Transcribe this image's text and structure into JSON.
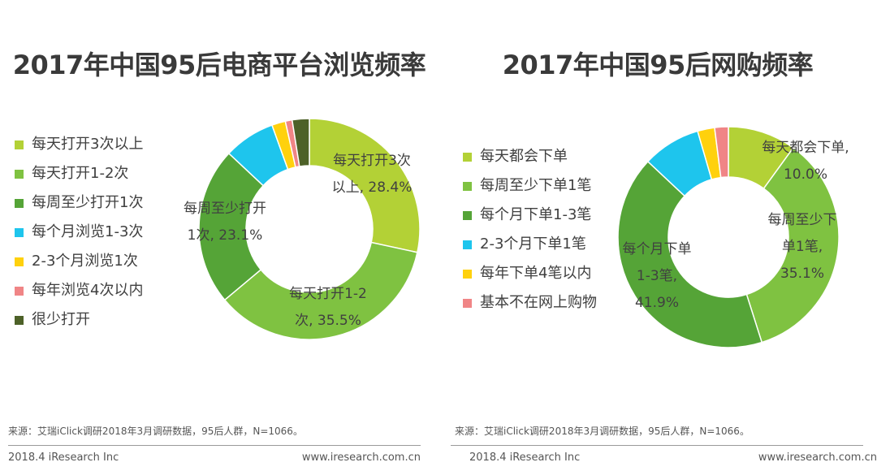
{
  "chart_data": [
    {
      "type": "pie",
      "title": "2017年中国95后电商平台浏览频率",
      "categories": [
        "每天打开3次以上",
        "每天打开1-2次",
        "每周至少打开1次",
        "每个月浏览1-3次",
        "2-3个月浏览1次",
        "每年浏览4次以内",
        "很少打开"
      ],
      "values": [
        28.4,
        35.5,
        23.1,
        7.5,
        2.0,
        1.0,
        2.5
      ],
      "colors": [
        "#b3d136",
        "#7fc241",
        "#55a437",
        "#1ec5ed",
        "#ffd10d",
        "#f08586",
        "#4d6128"
      ],
      "labels": [
        {
          "lines": [
            "每天打开3次",
            "以上, 28.4%"
          ]
        },
        {
          "lines": [
            "每天打开1-2",
            "次, 35.5%"
          ]
        },
        {
          "lines": [
            "每周至少打开",
            "1次, 23.1%"
          ]
        }
      ],
      "legend_position": "left"
    },
    {
      "type": "pie",
      "title": "2017年中国95后网购频率",
      "categories": [
        "每天都会下单",
        "每周至少下单1笔",
        "每个月下单1-3笔",
        "2-3个月下单1笔",
        "每年下单4笔以内",
        "基本不在网上购物"
      ],
      "values": [
        10.0,
        35.1,
        41.9,
        8.5,
        2.5,
        2.0
      ],
      "colors": [
        "#b3d136",
        "#7fc241",
        "#55a437",
        "#1ec5ed",
        "#ffd10d",
        "#f08586"
      ],
      "labels": [
        {
          "lines": [
            "每天都会下单,",
            "10.0%"
          ]
        },
        {
          "lines": [
            "每周至少下",
            "单1笔,",
            "35.1%"
          ]
        },
        {
          "lines": [
            "每个月下单",
            "1-3笔,",
            "41.9%"
          ]
        }
      ],
      "legend_position": "left"
    }
  ],
  "footer": {
    "source": "来源：艾瑞iClick调研2018年3月调研数据，95后人群，N=1066。",
    "copyright": "2018.4 iResearch Inc",
    "website": "www.iresearch.com.cn"
  }
}
